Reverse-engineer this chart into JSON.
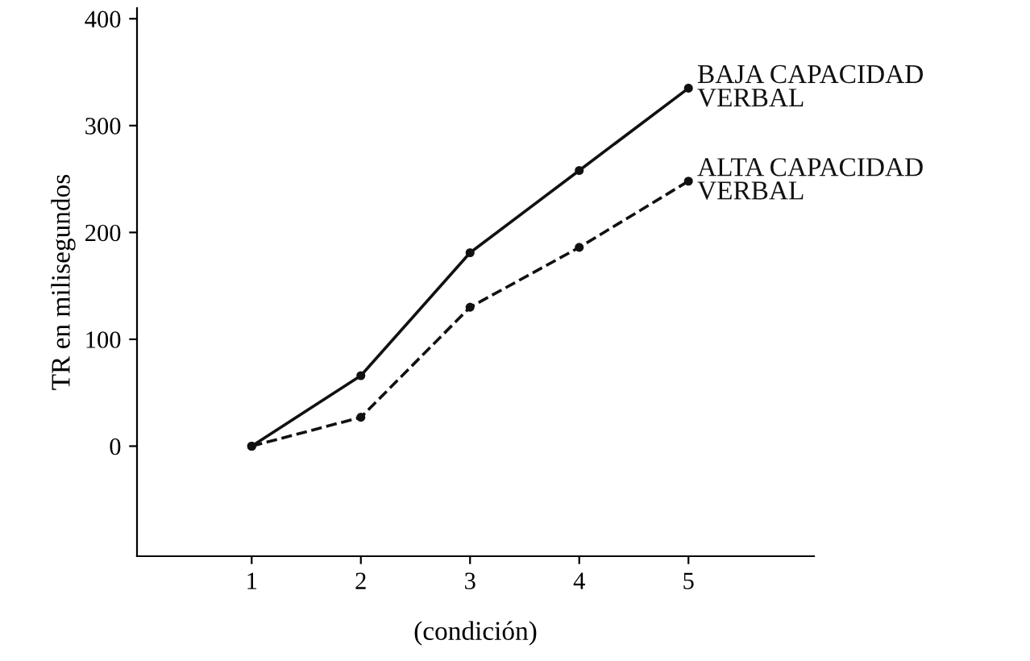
{
  "chart_data": {
    "type": "line",
    "xlabel": "(condición)",
    "ylabel": "TR en milisegundos",
    "x": [
      1,
      2,
      3,
      4,
      5
    ],
    "series": [
      {
        "name": "BAJA CAPACIDAD\nVERBAL",
        "color": "#111111",
        "line_style": "solid",
        "values": [
          0,
          66,
          181,
          258,
          335
        ]
      },
      {
        "name": "ALTA CAPACIDAD\nVERBAL",
        "color": "#111111",
        "line_style": "dashed",
        "values": [
          0,
          27,
          130,
          186,
          248
        ]
      }
    ],
    "xlim": [
      -0.05,
      6.15
    ],
    "ylim": [
      -103,
      410
    ],
    "xticks": [
      1,
      2,
      3,
      4,
      5
    ],
    "yticks": [
      0,
      100,
      200,
      300,
      400
    ],
    "marker": "circle",
    "grid": false,
    "legend": false
  }
}
